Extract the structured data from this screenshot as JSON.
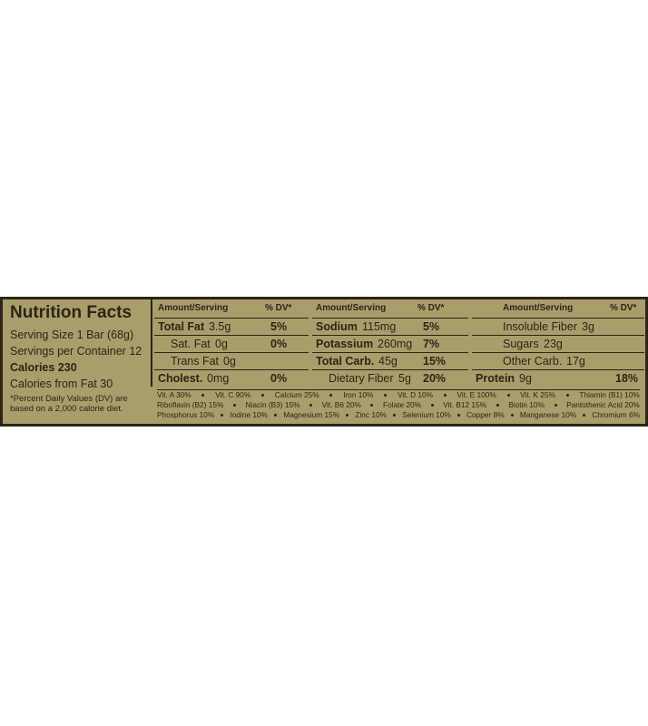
{
  "title": "Nutrition Facts",
  "serving_info": [
    "Serving Size 1 Bar (68g)",
    "Servings per Container 12",
    "Calories 230",
    "Calories from Fat 30"
  ],
  "footnote": "*Percent Daily Values (DV) are based on a 2,000 calorie diet.",
  "columns": [
    {
      "header": [
        "Amount/Serving",
        "% DV*"
      ],
      "rows": [
        [
          "Total Fat",
          "3.5g",
          "5%"
        ],
        [
          "Sat. Fat",
          "0g",
          "0%"
        ],
        [
          "Trans Fat",
          "0g"
        ],
        [
          "Cholest.",
          "0mg",
          "0%"
        ]
      ]
    },
    {
      "header": [
        "Amount/Serving",
        "% DV*"
      ],
      "rows": [
        [
          "Sodium",
          "115mg",
          "5%"
        ],
        [
          "Potassium",
          "260mg",
          "7%"
        ],
        [
          "Total Carb.",
          "45g",
          "15%"
        ],
        [
          "Dietary Fiber",
          "5g",
          "20%"
        ]
      ]
    },
    {
      "header": [
        "Amount/Serving",
        "% DV*"
      ],
      "rows": [
        [
          "Insoluble Fiber",
          "3g"
        ],
        [
          "Sugars",
          "23g"
        ],
        [
          "Other Carb.",
          "17g"
        ],
        [
          "Protein",
          "9g",
          "18%"
        ]
      ]
    }
  ],
  "vitamins": [
    [
      "Vit. A 30%",
      "Vit. C 90%",
      "Calcium 25%",
      "Iron 10%",
      "Vit. D 10%",
      "Vit. E 100%",
      "Vit. K 25%",
      "Thiamin (B1) 10%"
    ],
    [
      "Riboflavin (B2) 15%",
      "Niacin (B3) 15%",
      "Vit. B6 20%",
      "Folate 20%",
      "Vit. B12 15%",
      "Biotin 10%",
      "Pantothenic Acid 20%"
    ],
    [
      "Phosphorus 10%",
      "Iodine 10%",
      "Magnesium 15%",
      "Zinc 10%",
      "Selenium 10%",
      "Copper 8%",
      "Manganese 10%",
      "Chromium 6%"
    ]
  ]
}
